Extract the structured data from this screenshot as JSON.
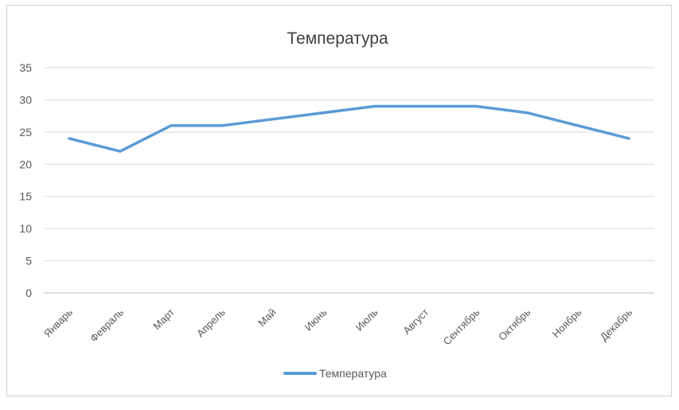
{
  "chart_data": {
    "type": "line",
    "title": "Температура",
    "xlabel": "",
    "ylabel": "",
    "categories": [
      "Январь",
      "Февраль",
      "Март",
      "Апрель",
      "Май",
      "Июнь",
      "Июль",
      "Август",
      "Сентябрь",
      "Октябрь",
      "Ноябрь",
      "Декабрь"
    ],
    "series": [
      {
        "name": "Температура",
        "values": [
          24,
          22,
          26,
          26,
          27,
          28,
          29,
          29,
          29,
          28,
          26,
          24
        ],
        "color": "#5b9bd5"
      }
    ],
    "ylim": [
      0,
      35
    ],
    "yticks": [
      0,
      5,
      10,
      15,
      20,
      25,
      30,
      35
    ],
    "grid": true,
    "legend_position": "bottom"
  }
}
